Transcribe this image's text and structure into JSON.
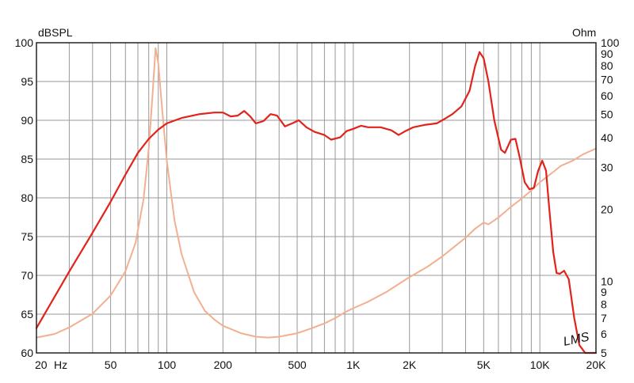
{
  "chart_data": {
    "type": "line",
    "title": "",
    "x_axis": {
      "scale": "log",
      "range_hz": [
        20,
        20000
      ],
      "tick_labels": [
        {
          "value": 20,
          "label": "20"
        },
        {
          "value": 50,
          "label": "50"
        },
        {
          "value": 100,
          "label": "100"
        },
        {
          "value": 200,
          "label": "200"
        },
        {
          "value": 500,
          "label": "500"
        },
        {
          "value": 1000,
          "label": "1K"
        },
        {
          "value": 2000,
          "label": "2K"
        },
        {
          "value": 5000,
          "label": "5K"
        },
        {
          "value": 10000,
          "label": "10K"
        },
        {
          "value": 20000,
          "label": "20K"
        }
      ],
      "unit_label": "Hz"
    },
    "y_left": {
      "label": "dBSPL",
      "range": [
        60,
        100
      ],
      "ticks": [
        60,
        65,
        70,
        75,
        80,
        85,
        90,
        95,
        100
      ]
    },
    "y_right": {
      "label": "Ohm",
      "scale": "log",
      "range": [
        5,
        100
      ],
      "ticks": [
        5,
        6,
        7,
        8,
        9,
        10,
        20,
        30,
        40,
        50,
        60,
        70,
        80,
        90,
        100
      ]
    },
    "grid": true,
    "watermark": "LMS",
    "series": [
      {
        "key": "spl",
        "axis": "left",
        "color": "#e0231b",
        "points": [
          [
            20,
            63.2
          ],
          [
            30,
            70.5
          ],
          [
            40,
            75.5
          ],
          [
            50,
            79.5
          ],
          [
            60,
            83.0
          ],
          [
            70,
            85.8
          ],
          [
            80,
            87.6
          ],
          [
            90,
            88.8
          ],
          [
            100,
            89.6
          ],
          [
            120,
            90.3
          ],
          [
            150,
            90.8
          ],
          [
            180,
            91.0
          ],
          [
            200,
            91.0
          ],
          [
            220,
            90.5
          ],
          [
            240,
            90.6
          ],
          [
            260,
            91.2
          ],
          [
            280,
            90.5
          ],
          [
            300,
            89.6
          ],
          [
            330,
            89.9
          ],
          [
            360,
            90.8
          ],
          [
            390,
            90.6
          ],
          [
            430,
            89.2
          ],
          [
            470,
            89.6
          ],
          [
            510,
            90.0
          ],
          [
            560,
            89.1
          ],
          [
            620,
            88.5
          ],
          [
            700,
            88.1
          ],
          [
            760,
            87.5
          ],
          [
            850,
            87.8
          ],
          [
            920,
            88.6
          ],
          [
            1000,
            88.9
          ],
          [
            1100,
            89.3
          ],
          [
            1200,
            89.1
          ],
          [
            1400,
            89.1
          ],
          [
            1600,
            88.7
          ],
          [
            1750,
            88.1
          ],
          [
            1900,
            88.6
          ],
          [
            2100,
            89.1
          ],
          [
            2400,
            89.4
          ],
          [
            2800,
            89.6
          ],
          [
            3100,
            90.2
          ],
          [
            3400,
            90.8
          ],
          [
            3800,
            91.8
          ],
          [
            4200,
            93.8
          ],
          [
            4500,
            97.0
          ],
          [
            4750,
            98.8
          ],
          [
            5000,
            98.0
          ],
          [
            5300,
            95.0
          ],
          [
            5700,
            90.0
          ],
          [
            6200,
            86.2
          ],
          [
            6500,
            85.8
          ],
          [
            7000,
            87.5
          ],
          [
            7400,
            87.6
          ],
          [
            7800,
            85.2
          ],
          [
            8300,
            82.0
          ],
          [
            8800,
            81.1
          ],
          [
            9300,
            81.3
          ],
          [
            9800,
            83.5
          ],
          [
            10300,
            84.8
          ],
          [
            10800,
            83.5
          ],
          [
            11300,
            78.0
          ],
          [
            11800,
            73.0
          ],
          [
            12300,
            70.3
          ],
          [
            12800,
            70.2
          ],
          [
            13500,
            70.6
          ],
          [
            14300,
            69.5
          ],
          [
            15300,
            64.5
          ],
          [
            16300,
            61.0
          ],
          [
            17500,
            60.0
          ],
          [
            20000,
            60.0
          ]
        ]
      },
      {
        "key": "impedance",
        "axis": "right",
        "color": "#f2b090",
        "points": [
          [
            20,
            5.8
          ],
          [
            25,
            6.0
          ],
          [
            30,
            6.4
          ],
          [
            40,
            7.3
          ],
          [
            50,
            8.7
          ],
          [
            60,
            11.0
          ],
          [
            68,
            14.5
          ],
          [
            75,
            22.0
          ],
          [
            80,
            36.0
          ],
          [
            84,
            62.0
          ],
          [
            87,
            95.0
          ],
          [
            90,
            82.0
          ],
          [
            95,
            50.0
          ],
          [
            100,
            32.0
          ],
          [
            110,
            18.0
          ],
          [
            120,
            13.0
          ],
          [
            140,
            9.0
          ],
          [
            160,
            7.5
          ],
          [
            180,
            6.9
          ],
          [
            200,
            6.5
          ],
          [
            250,
            6.05
          ],
          [
            300,
            5.85
          ],
          [
            350,
            5.8
          ],
          [
            400,
            5.85
          ],
          [
            500,
            6.05
          ],
          [
            600,
            6.35
          ],
          [
            700,
            6.65
          ],
          [
            800,
            7.0
          ],
          [
            900,
            7.4
          ],
          [
            1000,
            7.7
          ],
          [
            1200,
            8.2
          ],
          [
            1500,
            9.0
          ],
          [
            2000,
            10.4
          ],
          [
            2500,
            11.5
          ],
          [
            3000,
            12.7
          ],
          [
            3500,
            14.0
          ],
          [
            4000,
            15.2
          ],
          [
            4500,
            16.6
          ],
          [
            5000,
            17.6
          ],
          [
            5300,
            17.3
          ],
          [
            6000,
            18.5
          ],
          [
            7000,
            20.5
          ],
          [
            8000,
            22.2
          ],
          [
            9000,
            24.0
          ],
          [
            10000,
            26.0
          ],
          [
            11000,
            27.5
          ],
          [
            12000,
            29.0
          ],
          [
            13000,
            30.5
          ],
          [
            15000,
            32.0
          ],
          [
            17000,
            34.0
          ],
          [
            20000,
            36.0
          ]
        ]
      }
    ]
  }
}
